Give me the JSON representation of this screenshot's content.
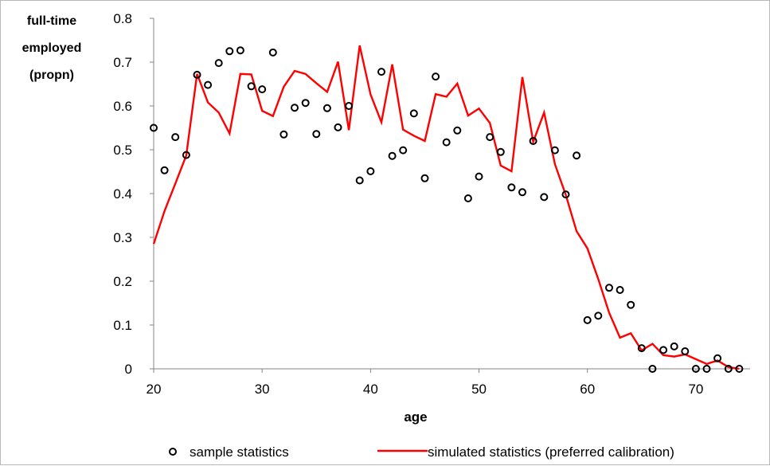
{
  "chart_data": {
    "type": "scatter+line",
    "ylabel_lines": [
      "full-time",
      "employed",
      "(propn)"
    ],
    "xlabel": "age",
    "xlim": [
      20,
      75
    ],
    "ylim": [
      0,
      0.8
    ],
    "x_ticks": [
      20,
      30,
      40,
      50,
      60,
      70
    ],
    "y_ticks": [
      0,
      0.1,
      0.2,
      0.3,
      0.4,
      0.5,
      0.6,
      0.7,
      0.8
    ],
    "y_tick_labels": [
      "0",
      "0.1",
      "0.2",
      "0.3",
      "0.4",
      "0.5",
      "0.6",
      "0.7",
      "0.8"
    ],
    "legend_position": "bottom",
    "series": [
      {
        "name": "sample statistics",
        "kind": "scatter",
        "color": "#000000",
        "points": [
          [
            20,
            0.55
          ],
          [
            21,
            0.453
          ],
          [
            22,
            0.529
          ],
          [
            23,
            0.488
          ],
          [
            24,
            0.671
          ],
          [
            25,
            0.648
          ],
          [
            26,
            0.698
          ],
          [
            27,
            0.725
          ],
          [
            28,
            0.727
          ],
          [
            29,
            0.645
          ],
          [
            30,
            0.638
          ],
          [
            31,
            0.722
          ],
          [
            32,
            0.535
          ],
          [
            33,
            0.596
          ],
          [
            34,
            0.607
          ],
          [
            35,
            0.536
          ],
          [
            36,
            0.595
          ],
          [
            37,
            0.551
          ],
          [
            38,
            0.6
          ],
          [
            39,
            0.43
          ],
          [
            40,
            0.451
          ],
          [
            41,
            0.678
          ],
          [
            42,
            0.486
          ],
          [
            43,
            0.499
          ],
          [
            44,
            0.583
          ],
          [
            45,
            0.435
          ],
          [
            46,
            0.667
          ],
          [
            47,
            0.517
          ],
          [
            48,
            0.544
          ],
          [
            49,
            0.389
          ],
          [
            50,
            0.439
          ],
          [
            51,
            0.529
          ],
          [
            52,
            0.495
          ],
          [
            53,
            0.414
          ],
          [
            54,
            0.403
          ],
          [
            55,
            0.52
          ],
          [
            56,
            0.392
          ],
          [
            57,
            0.499
          ],
          [
            58,
            0.398
          ],
          [
            59,
            0.487
          ],
          [
            60,
            0.111
          ],
          [
            61,
            0.121
          ],
          [
            62,
            0.185
          ],
          [
            63,
            0.18
          ],
          [
            64,
            0.146
          ],
          [
            65,
            0.047
          ],
          [
            66,
            0.0
          ],
          [
            67,
            0.043
          ],
          [
            68,
            0.051
          ],
          [
            69,
            0.04
          ],
          [
            70,
            0.0
          ],
          [
            71,
            0.0
          ],
          [
            72,
            0.024
          ],
          [
            73,
            0.0
          ],
          [
            74,
            0.0
          ]
        ]
      },
      {
        "name": "simulated statistics (preferred calibration)",
        "kind": "line",
        "color": "#ff0000",
        "points": [
          [
            20,
            0.285
          ],
          [
            21,
            0.36
          ],
          [
            22,
            0.423
          ],
          [
            23,
            0.487
          ],
          [
            24,
            0.673
          ],
          [
            25,
            0.608
          ],
          [
            26,
            0.585
          ],
          [
            27,
            0.537
          ],
          [
            28,
            0.673
          ],
          [
            29,
            0.672
          ],
          [
            30,
            0.589
          ],
          [
            31,
            0.577
          ],
          [
            32,
            0.644
          ],
          [
            33,
            0.68
          ],
          [
            34,
            0.673
          ],
          [
            35,
            0.652
          ],
          [
            36,
            0.632
          ],
          [
            37,
            0.701
          ],
          [
            38,
            0.545
          ],
          [
            39,
            0.738
          ],
          [
            40,
            0.626
          ],
          [
            41,
            0.563
          ],
          [
            42,
            0.695
          ],
          [
            43,
            0.546
          ],
          [
            44,
            0.532
          ],
          [
            45,
            0.52
          ],
          [
            46,
            0.627
          ],
          [
            47,
            0.621
          ],
          [
            48,
            0.651
          ],
          [
            49,
            0.578
          ],
          [
            50,
            0.594
          ],
          [
            51,
            0.561
          ],
          [
            52,
            0.464
          ],
          [
            53,
            0.451
          ],
          [
            54,
            0.666
          ],
          [
            55,
            0.518
          ],
          [
            56,
            0.585
          ],
          [
            57,
            0.467
          ],
          [
            58,
            0.397
          ],
          [
            59,
            0.314
          ],
          [
            60,
            0.275
          ],
          [
            61,
            0.205
          ],
          [
            62,
            0.128
          ],
          [
            63,
            0.071
          ],
          [
            64,
            0.081
          ],
          [
            65,
            0.042
          ],
          [
            66,
            0.057
          ],
          [
            67,
            0.031
          ],
          [
            68,
            0.028
          ],
          [
            69,
            0.033
          ],
          [
            70,
            0.022
          ],
          [
            71,
            0.011
          ],
          [
            72,
            0.019
          ],
          [
            73,
            0.004
          ],
          [
            74,
            0.0
          ]
        ]
      }
    ]
  }
}
